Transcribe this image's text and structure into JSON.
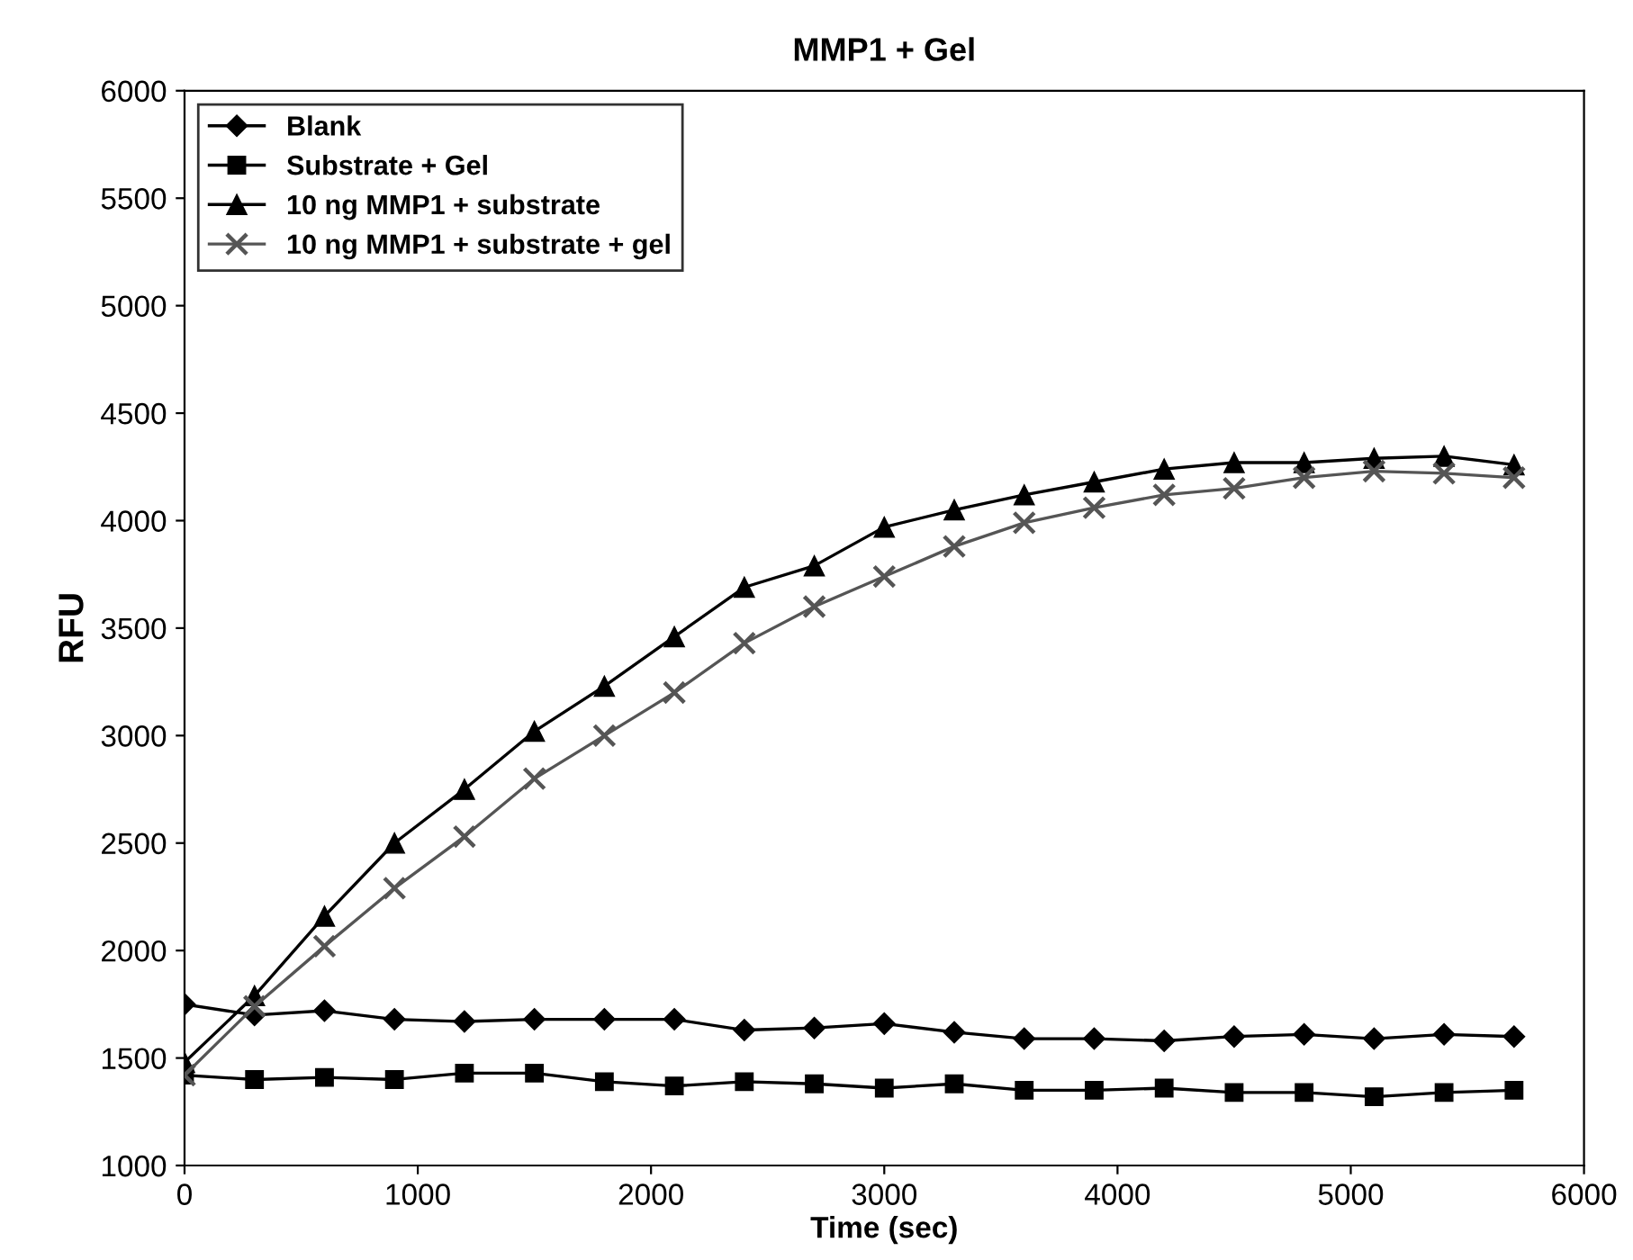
{
  "chart_data": {
    "type": "line",
    "title": "MMP1 + Gel",
    "xlabel": "Time (sec)",
    "ylabel": "RFU",
    "x": [
      0,
      300,
      600,
      900,
      1200,
      1500,
      1800,
      2100,
      2400,
      2700,
      3000,
      3300,
      3600,
      3900,
      4200,
      4500,
      4800,
      5100,
      5400,
      5700
    ],
    "series": [
      {
        "name": "Blank",
        "color": "#000000",
        "marker": "diamond",
        "values": [
          1750,
          1700,
          1720,
          1680,
          1670,
          1680,
          1680,
          1680,
          1630,
          1640,
          1660,
          1620,
          1590,
          1590,
          1580,
          1600,
          1610,
          1590,
          1610,
          1600
        ]
      },
      {
        "name": "Substrate + Gel",
        "color": "#000000",
        "marker": "square",
        "values": [
          1420,
          1400,
          1410,
          1400,
          1430,
          1430,
          1390,
          1370,
          1390,
          1380,
          1360,
          1380,
          1350,
          1350,
          1360,
          1340,
          1340,
          1320,
          1340,
          1350
        ]
      },
      {
        "name": "10 ng MMP1 + substrate",
        "color": "#000000",
        "marker": "triangle",
        "values": [
          1480,
          1790,
          2160,
          2500,
          2750,
          3020,
          3230,
          3460,
          3690,
          3790,
          3970,
          4050,
          4120,
          4180,
          4240,
          4270,
          4270,
          4290,
          4300,
          4260
        ]
      },
      {
        "name": "10 ng MMP1 + substrate + gel",
        "color": "#555555",
        "marker": "cross",
        "values": [
          1420,
          1740,
          2020,
          2290,
          2530,
          2800,
          3000,
          3200,
          3430,
          3600,
          3740,
          3880,
          3990,
          4060,
          4120,
          4150,
          4200,
          4230,
          4220,
          4200
        ]
      }
    ],
    "xlim": [
      0,
      6000
    ],
    "xticks": [
      0,
      1000,
      2000,
      3000,
      4000,
      5000,
      6000
    ],
    "ylim": [
      1000,
      6000
    ],
    "yticks": [
      1000,
      1500,
      2000,
      2500,
      3000,
      3500,
      4000,
      4500,
      5000,
      5500,
      6000
    ],
    "grid": false,
    "legend": "top left",
    "line_style": "solid"
  }
}
